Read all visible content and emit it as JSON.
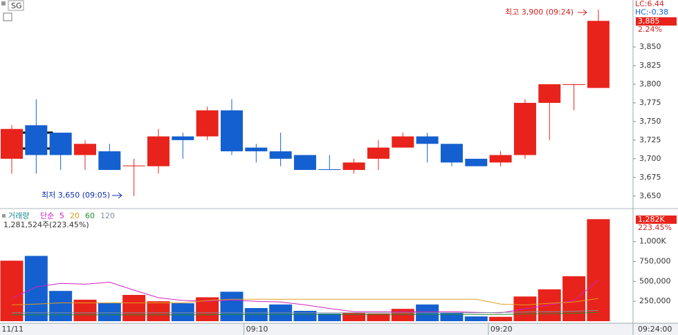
{
  "symbol": "SG",
  "chart_data": [
    {
      "type": "candlestick",
      "categories": [
        "11/11",
        null,
        null,
        null,
        null,
        null,
        null,
        null,
        null,
        null,
        "09:10",
        null,
        null,
        null,
        null,
        null,
        null,
        null,
        null,
        null,
        "09:20",
        null,
        null,
        null,
        null
      ],
      "open": [
        3700,
        3745,
        3735,
        3705,
        3710,
        3690,
        3690,
        3730,
        3730,
        3765,
        3715,
        3710,
        3705,
        3686,
        3685,
        3700,
        3715,
        3730,
        3720,
        3700,
        3695,
        3705,
        3775,
        3799,
        3795
      ],
      "high": [
        3745,
        3780,
        3735,
        3725,
        3720,
        3700,
        3740,
        3735,
        3770,
        3780,
        3720,
        3735,
        3705,
        3705,
        3700,
        3725,
        3735,
        3735,
        3720,
        3700,
        3710,
        3780,
        3800,
        3800,
        3900
      ],
      "low": [
        3680,
        3680,
        3685,
        3685,
        3685,
        3650,
        3680,
        3700,
        3725,
        3705,
        3695,
        3690,
        3685,
        3685,
        3680,
        3685,
        3715,
        3695,
        3690,
        3690,
        3690,
        3700,
        3725,
        3765,
        3795
      ],
      "close": [
        3740,
        3705,
        3705,
        3720,
        3685,
        3691,
        3730,
        3725,
        3765,
        3710,
        3710,
        3700,
        3685,
        3685,
        3695,
        3715,
        3730,
        3720,
        3695,
        3690,
        3705,
        3775,
        3800,
        3800,
        3885
      ],
      "up_color": "#e8231b",
      "down_color": "#1560d0",
      "ylim": [
        3635,
        3913
      ],
      "yticks": [
        {
          "value": 3650,
          "label": "3,650"
        },
        {
          "value": 3675,
          "label": "3,675"
        },
        {
          "value": 3700,
          "label": "3,700"
        },
        {
          "value": 3725,
          "label": "3,725"
        },
        {
          "value": 3750,
          "label": "3,750"
        },
        {
          "value": 3775,
          "label": "3,775"
        },
        {
          "value": 3800,
          "label": "3,800"
        },
        {
          "value": 3825,
          "label": "3,825"
        },
        {
          "value": 3850,
          "label": "3,850"
        }
      ],
      "annotations": [
        {
          "text": "최고 3,900 (09:24)",
          "color": "#d42020"
        },
        {
          "text": "최저 3,650 (09:05)",
          "color": "#1030b0"
        }
      ],
      "lc_label": "LC:6.44",
      "hc_label": "HC:-0.38",
      "last_label": "3,885",
      "change_label": "2.24%",
      "cursor_time": "09:24:00"
    },
    {
      "type": "bar",
      "values": [
        760000,
        820000,
        380000,
        270000,
        225000,
        330000,
        250000,
        225000,
        300000,
        370000,
        165000,
        210000,
        130000,
        95000,
        105000,
        95000,
        155000,
        210000,
        105000,
        60000,
        55000,
        310000,
        400000,
        565000,
        1281524
      ],
      "series": [
        {
          "name": "5",
          "color": "#d020c0",
          "values": [
            285000,
            430000,
            475000,
            465000,
            490000,
            390000,
            295000,
            260000,
            250000,
            265000,
            250000,
            240000,
            205000,
            160000,
            120000,
            120000,
            120000,
            120000,
            120000,
            110000,
            105000,
            155000,
            205000,
            260000,
            515000
          ]
        },
        {
          "name": "20",
          "color": "#e0a020",
          "values": [
            205000,
            215000,
            230000,
            230000,
            230000,
            230000,
            230000,
            230000,
            260000,
            275000,
            275000,
            275000,
            275000,
            275000,
            275000,
            275000,
            275000,
            275000,
            275000,
            275000,
            215000,
            205000,
            225000,
            240000,
            285000
          ]
        },
        {
          "name": "60",
          "color": "#209030",
          "values": [
            80000,
            80000,
            80000,
            80000,
            80000,
            80000,
            80000,
            80000,
            80000,
            85000,
            85000,
            85000,
            85000,
            85000,
            85000,
            85000,
            85000,
            85000,
            85000,
            85000,
            85000,
            90000,
            95000,
            100000,
            110000
          ]
        },
        {
          "name": "120",
          "color": "#8090a0",
          "values": [
            105000,
            105000,
            105000,
            105000,
            105000,
            105000,
            105000,
            105000,
            105000,
            105000,
            105000,
            105000,
            105000,
            105000,
            105000,
            105000,
            105000,
            105000,
            105000,
            105000,
            110000,
            115000,
            120000,
            125000,
            135000
          ]
        }
      ],
      "ylim": [
        0,
        1388000
      ],
      "yticks": [
        {
          "value": 250000,
          "label": "250,000"
        },
        {
          "value": 500000,
          "label": "500,000"
        },
        {
          "value": 750000,
          "label": "750,000"
        },
        {
          "value": 1000000,
          "label": "1,000K"
        }
      ],
      "volume_label": "거래량",
      "ma_type_label": "단순",
      "summary": "1,281,524주(223.45%)",
      "last_label": "1,282K",
      "ratio_label": "223.45%"
    }
  ]
}
